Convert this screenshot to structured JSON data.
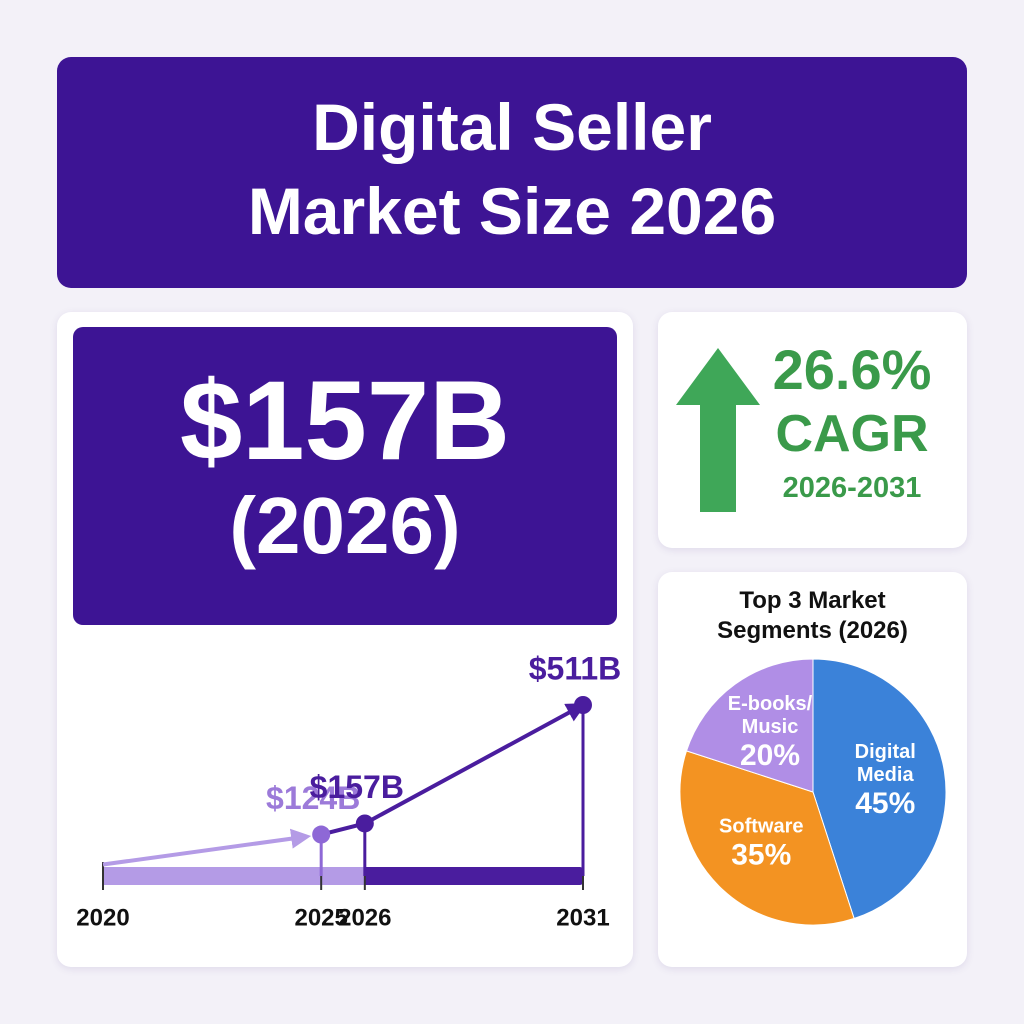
{
  "header": {
    "title_lines": [
      "Digital Seller",
      "Market Size 2026"
    ]
  },
  "headline": {
    "value": "$157B",
    "year": "(2026)"
  },
  "cagr": {
    "rate": "26.6%",
    "label": "CAGR",
    "period": "2026-2031"
  },
  "chart_data": [
    {
      "type": "line",
      "x": [
        2020,
        2025,
        2026,
        2031
      ],
      "xlim": [
        2020,
        2031
      ],
      "xticks": [
        2020,
        2025,
        2026,
        2031
      ],
      "values": [
        null,
        124,
        157,
        511
      ],
      "value_labels": [
        null,
        "$124B",
        "$157B",
        "$511B"
      ],
      "color": "#4a1d9e"
    },
    {
      "type": "pie",
      "title": "Top 3 Market Segments (2026)",
      "categories": [
        "Digital Media",
        "Software",
        "E-books/ Music"
      ],
      "values": [
        45,
        35,
        20
      ],
      "value_labels": [
        "45%",
        "35%",
        "20%"
      ],
      "colors": [
        "#3b82d9",
        "#f39322",
        "#b08ee6"
      ]
    }
  ]
}
